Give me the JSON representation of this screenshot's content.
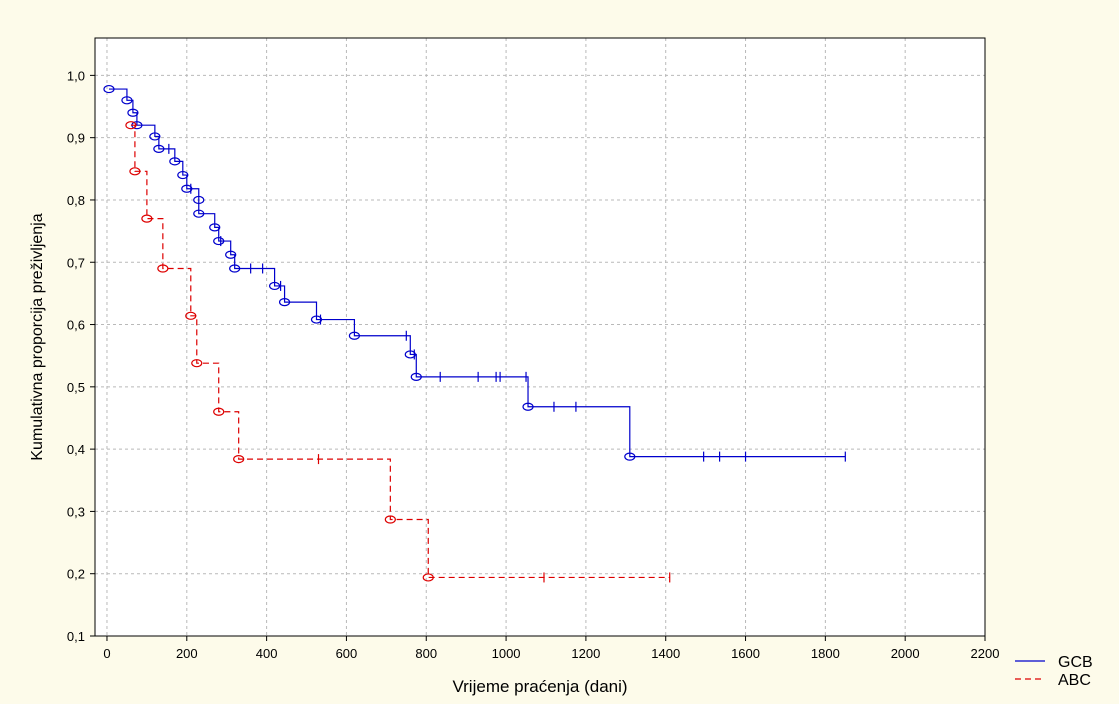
{
  "chart_data": {
    "type": "line",
    "chart_style": "kaplan-meier-step",
    "xlabel": "Vrijeme praćenja (dani)",
    "ylabel": "Kumulativna proporcija preživljenja",
    "xlim": [
      -30,
      2200
    ],
    "ylim": [
      0.1,
      1.06
    ],
    "x_ticks": [
      0,
      200,
      400,
      600,
      800,
      1000,
      1200,
      1400,
      1600,
      1800,
      2000,
      2200
    ],
    "x_tick_labels": [
      "0",
      "200",
      "400",
      "600",
      "800",
      "1000",
      "1200",
      "1400",
      "1600",
      "1800",
      "2000",
      "2200"
    ],
    "y_ticks": [
      0.1,
      0.2,
      0.3,
      0.4,
      0.5,
      0.6,
      0.7,
      0.8,
      0.9,
      1.0
    ],
    "y_tick_labels": [
      "0,1",
      "0,2",
      "0,3",
      "0,4",
      "0,5",
      "0,6",
      "0,7",
      "0,8",
      "0,9",
      "1,0"
    ],
    "grid": true,
    "legend_position": "bottom-right outside plot",
    "series": [
      {
        "name": "GCB",
        "color": "#0000cc",
        "line_style": "solid",
        "events": [
          [
            5,
            0.978
          ],
          [
            50,
            0.96
          ],
          [
            65,
            0.94
          ],
          [
            75,
            0.92
          ],
          [
            120,
            0.902
          ],
          [
            130,
            0.882
          ],
          [
            170,
            0.862
          ],
          [
            190,
            0.84
          ],
          [
            200,
            0.818
          ],
          [
            230,
            0.8
          ],
          [
            230,
            0.778
          ],
          [
            270,
            0.756
          ],
          [
            280,
            0.734
          ],
          [
            310,
            0.712
          ],
          [
            320,
            0.69
          ],
          [
            420,
            0.662
          ],
          [
            445,
            0.636
          ],
          [
            525,
            0.608
          ],
          [
            620,
            0.582
          ],
          [
            760,
            0.552
          ],
          [
            775,
            0.516
          ],
          [
            1055,
            0.468
          ],
          [
            1310,
            0.388
          ]
        ],
        "censored": [
          [
            155,
            0.882
          ],
          [
            210,
            0.818
          ],
          [
            285,
            0.734
          ],
          [
            360,
            0.69
          ],
          [
            390,
            0.69
          ],
          [
            435,
            0.662
          ],
          [
            535,
            0.608
          ],
          [
            750,
            0.582
          ],
          [
            770,
            0.552
          ],
          [
            835,
            0.516
          ],
          [
            930,
            0.516
          ],
          [
            975,
            0.516
          ],
          [
            985,
            0.516
          ],
          [
            1050,
            0.516
          ],
          [
            1120,
            0.468
          ],
          [
            1175,
            0.468
          ],
          [
            1495,
            0.388
          ],
          [
            1535,
            0.388
          ],
          [
            1600,
            0.388
          ],
          [
            1850,
            0.388
          ]
        ]
      },
      {
        "name": "ABC",
        "color": "#dd0000",
        "line_style": "dashed",
        "events": [
          [
            60,
            0.92
          ],
          [
            70,
            0.846
          ],
          [
            100,
            0.77
          ],
          [
            140,
            0.69
          ],
          [
            210,
            0.614
          ],
          [
            225,
            0.538
          ],
          [
            280,
            0.46
          ],
          [
            330,
            0.384
          ],
          [
            710,
            0.287
          ],
          [
            805,
            0.194
          ]
        ],
        "censored": [
          [
            530,
            0.384
          ],
          [
            1095,
            0.194
          ],
          [
            1410,
            0.194
          ]
        ]
      }
    ]
  }
}
